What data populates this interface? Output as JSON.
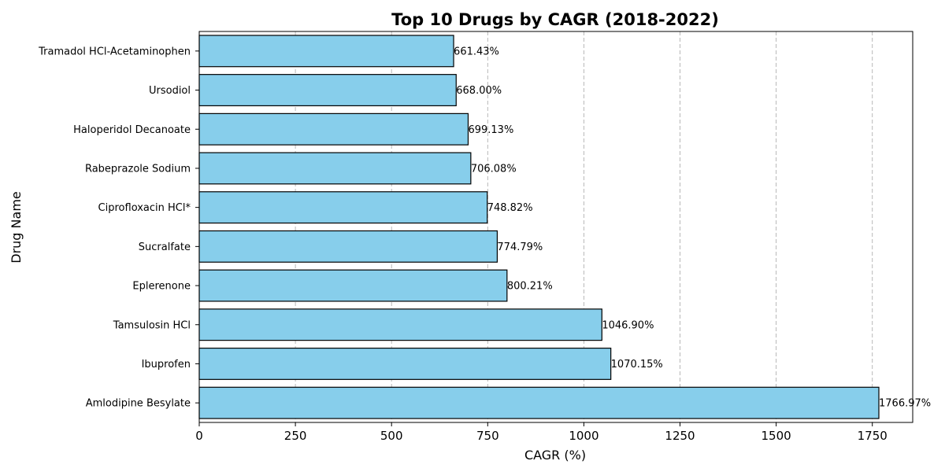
{
  "chart_data": {
    "type": "bar",
    "orientation": "horizontal",
    "title": "Top 10 Drugs by CAGR (2018-2022)",
    "xlabel": "CAGR (%)",
    "ylabel": "Drug Name",
    "categories": [
      "Amlodipine Besylate",
      "Ibuprofen",
      "Tamsulosin HCl",
      "Eplerenone",
      "Sucralfate",
      "Ciprofloxacin HCl*",
      "Rabeprazole Sodium",
      "Haloperidol Decanoate",
      "Ursodiol",
      "Tramadol HCl-Acetaminophen"
    ],
    "values": [
      1766.97,
      1070.15,
      1046.9,
      800.21,
      774.79,
      748.82,
      706.08,
      699.13,
      668.0,
      661.43
    ],
    "data_labels": [
      "1766.97%",
      "1070.15%",
      "1046.90%",
      "800.21%",
      "774.79%",
      "748.82%",
      "706.08%",
      "699.13%",
      "668.00%",
      "661.43%"
    ],
    "xlim": [
      0,
      1855
    ],
    "xticks": [
      0,
      250,
      500,
      750,
      1000,
      1250,
      1500,
      1750
    ],
    "x_grid": true,
    "grid_style": "dashed",
    "bar_color": "#87ceeb",
    "bar_edge_color": "#000000"
  }
}
